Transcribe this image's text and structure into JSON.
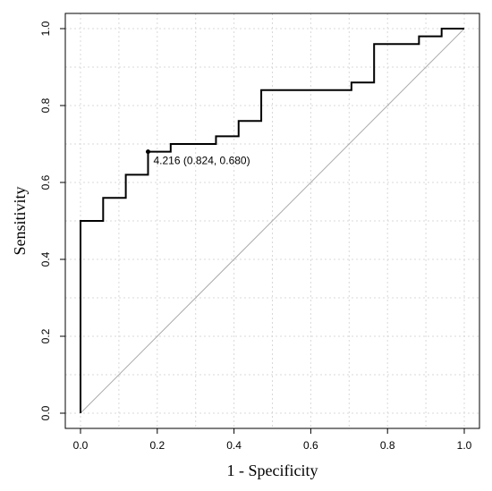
{
  "chart_data": {
    "type": "line",
    "xlabel": "1 - Specificity",
    "ylabel": "Sensitivity",
    "xlim": [
      0,
      1
    ],
    "ylim": [
      0,
      1
    ],
    "x_ticks": [
      "0.0",
      "0.2",
      "0.4",
      "0.6",
      "0.8",
      "1.0"
    ],
    "y_ticks": [
      "0.0",
      "0.2",
      "0.4",
      "0.6",
      "0.8",
      "1.0"
    ],
    "grid": true,
    "reference_line": {
      "x": [
        0,
        1
      ],
      "y": [
        0,
        1
      ],
      "color": "#aaaaaa"
    },
    "series": [
      {
        "x": [
          0.0,
          0.0,
          0.059,
          0.059,
          0.118,
          0.118,
          0.176,
          0.176,
          0.235,
          0.235,
          0.353,
          0.353,
          0.412,
          0.412,
          0.471,
          0.471,
          0.706,
          0.706,
          0.765,
          0.765,
          0.882,
          0.882,
          0.941,
          0.941,
          1.0
        ],
        "y": [
          0.0,
          0.5,
          0.5,
          0.56,
          0.56,
          0.62,
          0.62,
          0.68,
          0.68,
          0.7,
          0.7,
          0.72,
          0.72,
          0.76,
          0.76,
          0.84,
          0.84,
          0.86,
          0.86,
          0.96,
          0.96,
          0.98,
          0.98,
          1.0,
          1.0
        ],
        "color": "#000000"
      }
    ],
    "annotation": {
      "text": "4.216 (0.824, 0.680)",
      "x": 0.176,
      "y": 0.68
    }
  }
}
